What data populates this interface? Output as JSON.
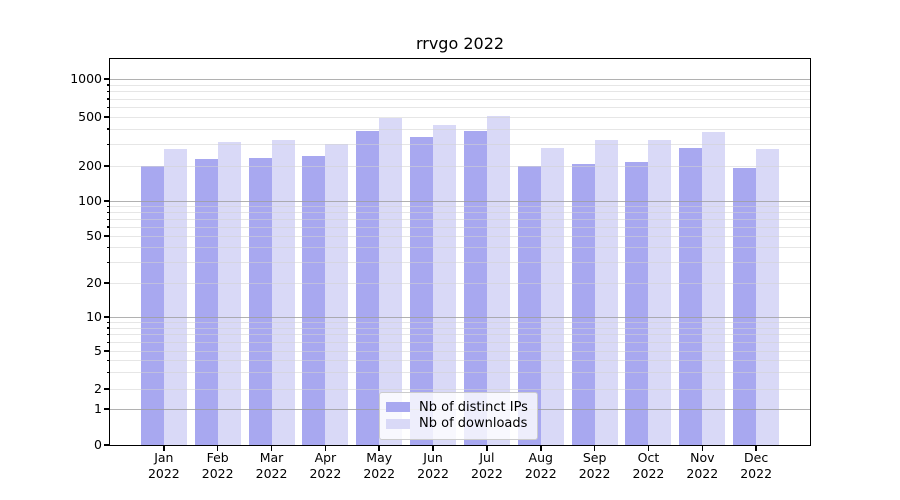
{
  "title": "rrvgo 2022",
  "colors": {
    "distinct_ips": "#a8a8f0",
    "downloads": "#d9d9f7",
    "grid_major": "#b0b0b0",
    "grid_minor": "#e4e4e4",
    "axis": "#000000",
    "legend_border": "#cccccc"
  },
  "x_axis": {
    "months": [
      "Jan",
      "Feb",
      "Mar",
      "Apr",
      "May",
      "Jun",
      "Jul",
      "Aug",
      "Sep",
      "Oct",
      "Nov",
      "Dec"
    ],
    "year": "2022"
  },
  "y_axis": {
    "ticks": [
      0,
      1,
      2,
      5,
      10,
      20,
      50,
      100,
      200,
      500,
      1000
    ]
  },
  "legend": {
    "items": [
      {
        "label": "Nb of distinct IPs",
        "color_key": "distinct_ips"
      },
      {
        "label": "Nb of downloads",
        "color_key": "downloads"
      }
    ]
  },
  "chart_data": {
    "type": "bar",
    "title": "rrvgo 2022",
    "categories": [
      "Jan 2022",
      "Feb 2022",
      "Mar 2022",
      "Apr 2022",
      "May 2022",
      "Jun 2022",
      "Jul 2022",
      "Aug 2022",
      "Sep 2022",
      "Oct 2022",
      "Nov 2022",
      "Dec 2022"
    ],
    "series": [
      {
        "name": "Nb of distinct IPs",
        "color": "#a8a8f0",
        "values": [
          200,
          229,
          231,
          240,
          385,
          345,
          387,
          200,
          206,
          214,
          279,
          193
        ]
      },
      {
        "name": "Nb of downloads",
        "color": "#d9d9f7",
        "values": [
          275,
          315,
          324,
          302,
          495,
          430,
          510,
          278,
          327,
          323,
          380,
          274
        ]
      }
    ],
    "yscale": "asinh (log-like, includes 0)",
    "y_ticks": [
      0,
      1,
      2,
      5,
      10,
      20,
      50,
      100,
      200,
      500,
      1000
    ],
    "ylim": [
      0,
      1300
    ],
    "grid": true,
    "legend_position": "lower center"
  }
}
